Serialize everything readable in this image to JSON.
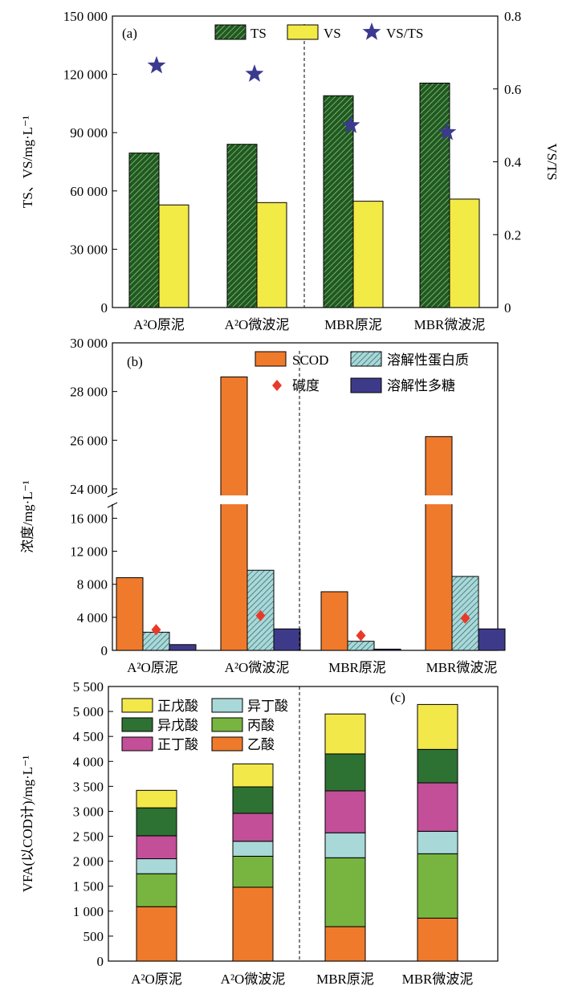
{
  "categories_html": [
    "A²O原泥",
    "A²O微波泥",
    "MBR原泥",
    "MBR微波泥"
  ],
  "chart_data": [
    {
      "type": "bar",
      "panel_label": "(a)",
      "categories": [
        "A²O原泥",
        "A²O微波泥",
        "MBR原泥",
        "MBR微波泥"
      ],
      "ylabel": "TS、VS/mg·L⁻¹",
      "y2label": "VS/TS",
      "ylim": [
        0,
        150000
      ],
      "y2lim": [
        0,
        0.8
      ],
      "yticks": [
        "0",
        "30 000",
        "60 000",
        "90 000",
        "120 000",
        "150 000"
      ],
      "y2ticks": [
        "0",
        "0.2",
        "0.4",
        "0.6",
        "0.8"
      ],
      "series": [
        {
          "name": "TS",
          "values": [
            79500,
            84000,
            109000,
            115500
          ],
          "color": "#1f5a1f",
          "pattern": "hatch"
        },
        {
          "name": "VS",
          "values": [
            52800,
            54000,
            54700,
            55800
          ],
          "color": "#f2ea45"
        },
        {
          "name": "VS/TS",
          "values": [
            0.664,
            0.641,
            0.5,
            0.481
          ],
          "color": "#3c3a8f",
          "marker": "star",
          "axis": "right"
        }
      ],
      "divider": "dashed line between A²O微波泥 and MBR原泥",
      "legend": "top"
    },
    {
      "type": "bar",
      "panel_label": "(b)",
      "categories": [
        "A²O原泥",
        "A²O微波泥",
        "MBR原泥",
        "MBR微波泥"
      ],
      "ylabel": "浓度/mg·L⁻¹",
      "broken_axis": {
        "lower": [
          0,
          17500
        ],
        "upper": [
          23800,
          30000
        ]
      },
      "yticks_lower": [
        "0",
        "4 000",
        "8 000",
        "12 000",
        "16 000"
      ],
      "yticks_upper": [
        "24 000",
        "26 000",
        "28 000",
        "30 000"
      ],
      "series": [
        {
          "name": "SCOD",
          "values": [
            8800,
            28600,
            7100,
            26150
          ],
          "color": "#f07a2c"
        },
        {
          "name": "溶解性蛋白质",
          "values": [
            2200,
            9700,
            1100,
            8950
          ],
          "color": "#a8d8d8",
          "pattern": "hatch"
        },
        {
          "name": "碱度",
          "values": [
            2500,
            4200,
            1800,
            3900
          ],
          "color": "#e83a2a",
          "marker": "diamond"
        },
        {
          "name": "溶解性多糖",
          "values": [
            700,
            2600,
            150,
            2600
          ],
          "color": "#3e3a8a"
        }
      ],
      "divider": "dashed line between A²O微波泥 and MBR原泥",
      "legend": "top-right"
    },
    {
      "type": "bar",
      "stacked": true,
      "panel_label": "(c)",
      "categories": [
        "A²O原泥",
        "A²O微波泥",
        "MBR原泥",
        "MBR微波泥"
      ],
      "ylabel": "VFA(以COD计)/mg·L⁻¹",
      "ylim": [
        0,
        5500
      ],
      "yticks": [
        "0",
        "500",
        "1 000",
        "1 500",
        "2 000",
        "2 500",
        "3 000",
        "3 500",
        "4 000",
        "4 500",
        "5 000",
        "5 500"
      ],
      "series": [
        {
          "name": "乙酸",
          "values": [
            1090,
            1480,
            690,
            860
          ],
          "color": "#f07a2c"
        },
        {
          "name": "丙酸",
          "values": [
            660,
            620,
            1380,
            1290
          ],
          "color": "#77b540"
        },
        {
          "name": "异丁酸",
          "values": [
            300,
            300,
            500,
            450
          ],
          "color": "#a9d8d8"
        },
        {
          "name": "正丁酸",
          "values": [
            460,
            560,
            840,
            970
          ],
          "color": "#c24f98"
        },
        {
          "name": "异戊酸",
          "values": [
            560,
            530,
            740,
            670
          ],
          "color": "#2e7233"
        },
        {
          "name": "正戊酸",
          "values": [
            350,
            460,
            800,
            900
          ],
          "color": "#f3e84a"
        }
      ],
      "legend_order": [
        "正戊酸",
        "异丁酸",
        "异戊酸",
        "丙酸",
        "正丁酸",
        "乙酸"
      ],
      "divider": "dashed line between A²O微波泥 and MBR原泥",
      "legend": "top-left"
    }
  ]
}
